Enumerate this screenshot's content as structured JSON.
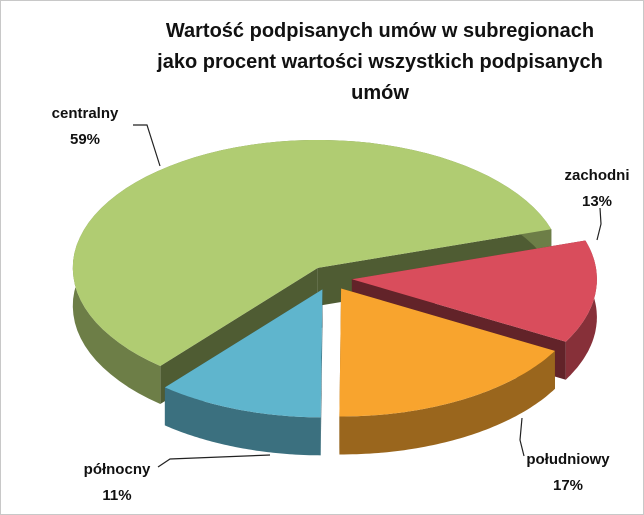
{
  "chart_data": {
    "type": "pie3d",
    "title": "Wartość podpisanych umów w subregionach jako procent wartości wszystkich podpisanych umów",
    "categories": [
      "centralny",
      "zachodni",
      "południowy",
      "północny"
    ],
    "values": [
      59,
      13,
      17,
      11
    ],
    "value_labels": [
      "59%",
      "13%",
      "17%",
      "11%"
    ],
    "colors": [
      "#b0cc72",
      "#d94d5c",
      "#f8a42e",
      "#5fb5cd"
    ]
  }
}
